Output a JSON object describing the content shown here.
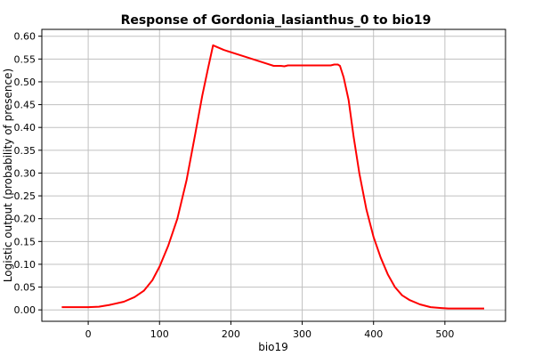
{
  "chart_data": {
    "type": "line",
    "title": "Response of Gordonia_lasianthus_0 to bio19",
    "xlabel": "bio19",
    "ylabel": "Logistic output (probability of presence)",
    "xlim": [
      -65,
      585
    ],
    "ylim": [
      -0.025,
      0.615
    ],
    "xticks": [
      0,
      100,
      200,
      300,
      400,
      500
    ],
    "yticks": [
      0.0,
      0.05,
      0.1,
      0.15,
      0.2,
      0.25,
      0.3,
      0.35,
      0.4,
      0.45,
      0.5,
      0.55,
      0.6
    ],
    "xtick_labels": [
      "0",
      "100",
      "200",
      "300",
      "400",
      "500"
    ],
    "ytick_labels": [
      "0.00",
      "0.05",
      "0.10",
      "0.15",
      "0.20",
      "0.25",
      "0.30",
      "0.35",
      "0.40",
      "0.45",
      "0.50",
      "0.55",
      "0.60"
    ],
    "grid": true,
    "colors": {
      "line": "#ff0000",
      "grid": "#c0c0c0",
      "frame": "#000000"
    },
    "series": [
      {
        "x": [
          -37,
          0,
          15,
          30,
          50,
          65,
          78,
          90,
          100,
          112,
          125,
          138,
          150,
          160,
          168,
          175,
          190,
          210,
          230,
          250,
          260,
          270,
          275,
          280,
          300,
          320,
          340,
          345,
          350,
          353,
          358,
          365,
          372,
          380,
          390,
          400,
          410,
          420,
          430,
          440,
          450,
          465,
          480,
          495,
          505,
          520,
          540,
          555
        ],
        "y": [
          0.006,
          0.006,
          0.007,
          0.011,
          0.018,
          0.028,
          0.042,
          0.065,
          0.095,
          0.14,
          0.2,
          0.285,
          0.385,
          0.47,
          0.53,
          0.58,
          0.57,
          0.56,
          0.55,
          0.54,
          0.535,
          0.535,
          0.534,
          0.536,
          0.536,
          0.536,
          0.536,
          0.538,
          0.538,
          0.535,
          0.51,
          0.46,
          0.38,
          0.3,
          0.22,
          0.16,
          0.115,
          0.078,
          0.05,
          0.032,
          0.022,
          0.012,
          0.006,
          0.004,
          0.003,
          0.003,
          0.003,
          0.003
        ]
      }
    ]
  }
}
